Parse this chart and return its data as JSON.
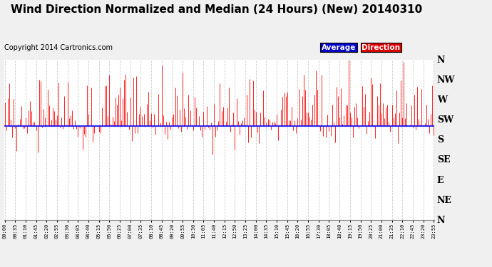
{
  "title": "Wind Direction Normalized and Median (24 Hours) (New) 20140310",
  "copyright": "Copyright 2014 Cartronics.com",
  "background_color": "#f0f0f0",
  "plot_bg_color": "#ffffff",
  "grid_color": "#aaaaaa",
  "direction_labels": [
    "N",
    "NW",
    "W",
    "SW",
    "S",
    "SE",
    "E",
    "NE",
    "N"
  ],
  "direction_values": [
    0,
    1,
    2,
    3,
    4,
    5,
    6,
    7,
    8
  ],
  "median_value": 3.3,
  "legend_average_color": "#0000cc",
  "legend_direction_color": "#dd0000",
  "title_fontsize": 11,
  "copyright_fontsize": 7,
  "num_points": 288,
  "seed": 12345
}
